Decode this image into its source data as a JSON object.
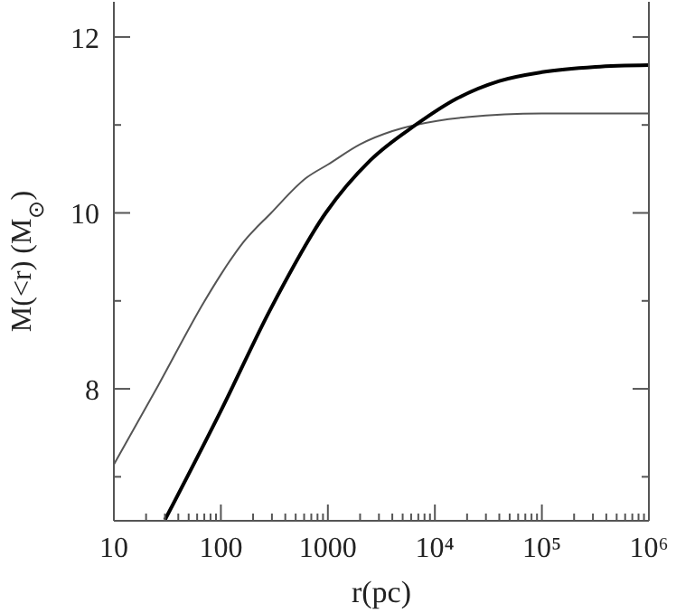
{
  "chart_data": {
    "type": "line",
    "xlabel": "r(pc)",
    "ylabel": "M(<r) (M$_{⊙}$)",
    "log": "x",
    "marker": "none",
    "line_style": "solid",
    "xlim": [
      10,
      1000000
    ],
    "ylim": [
      6.5,
      12.4
    ],
    "xticks": [
      10,
      {
        "value": 20,
        "label": null
      },
      {
        "value": 30,
        "label": null
      },
      {
        "value": 40,
        "label": null
      },
      {
        "value": 50,
        "label": null
      },
      {
        "value": 60,
        "label": null
      },
      {
        "value": 70,
        "label": null
      },
      {
        "value": 80,
        "label": null
      },
      {
        "value": 90,
        "label": null
      },
      100,
      {
        "value": 200,
        "label": null
      },
      {
        "value": 300,
        "label": null
      },
      {
        "value": 400,
        "label": null
      },
      {
        "value": 500,
        "label": null
      },
      {
        "value": 600,
        "label": null
      },
      {
        "value": 700,
        "label": null
      },
      {
        "value": 800,
        "label": null
      },
      {
        "value": 900,
        "label": null
      },
      1000,
      {
        "value": 2000,
        "label": null
      },
      {
        "value": 3000,
        "label": null
      },
      {
        "value": 4000,
        "label": null
      },
      {
        "value": 5000,
        "label": null
      },
      {
        "value": 6000,
        "label": null
      },
      {
        "value": 7000,
        "label": null
      },
      {
        "value": 8000,
        "label": null
      },
      {
        "value": 9000,
        "label": null
      },
      {
        "value": 10000,
        "label": "10⁴"
      },
      {
        "value": 20000,
        "label": null
      },
      {
        "value": 30000,
        "label": null
      },
      {
        "value": 40000,
        "label": null
      },
      {
        "value": 50000,
        "label": null
      },
      {
        "value": 60000,
        "label": null
      },
      {
        "value": 70000,
        "label": null
      },
      {
        "value": 80000,
        "label": null
      },
      {
        "value": 90000,
        "label": null
      },
      {
        "value": 100000,
        "label": "10⁵"
      },
      {
        "value": 200000,
        "label": null
      },
      {
        "value": 300000,
        "label": null
      },
      {
        "value": 400000,
        "label": null
      },
      {
        "value": 500000,
        "label": null
      },
      {
        "value": 600000,
        "label": null
      },
      {
        "value": 700000,
        "label": null
      },
      {
        "value": 800000,
        "label": null
      },
      {
        "value": 900000,
        "label": null
      },
      {
        "value": 1000000,
        "label": "10⁶"
      }
    ],
    "yticks": [
      {
        "value": 7,
        "label": null
      },
      8,
      {
        "value": 9,
        "label": null
      },
      10,
      {
        "value": 11,
        "label": null
      },
      12
    ],
    "series": [
      {
        "color": "#555555",
        "x": [
          10,
          26,
          69,
          100,
          158,
          295,
          631,
          1000,
          2000,
          4000,
          6600,
          20000,
          100000,
          1000000
        ],
        "values": [
          7.14,
          8.04,
          8.98,
          9.3,
          9.65,
          10.0,
          10.4,
          10.55,
          10.78,
          10.93,
          11.0,
          11.09,
          11.13,
          11.13
        ]
      },
      {
        "color": "#000000",
        "x": [
          30,
          100,
          295,
          955,
          2500,
          6600,
          16000,
          40000,
          100000,
          316000,
          1000000
        ],
        "values": [
          6.51,
          7.75,
          8.92,
          10.0,
          10.6,
          11.0,
          11.3,
          11.5,
          11.6,
          11.66,
          11.68
        ]
      }
    ]
  }
}
